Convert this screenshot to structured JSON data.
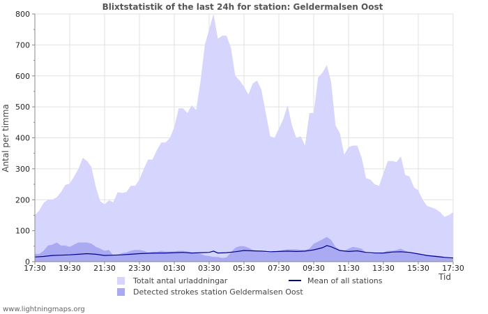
{
  "chart_data": {
    "type": "area",
    "title": "Blixtstatistik of the last 24h for station: Geldermalsen Oost",
    "ylabel": "Antal per timma",
    "xlabel": "Tid",
    "ylim": [
      0,
      800
    ],
    "yticks": [
      0,
      100,
      200,
      300,
      400,
      500,
      600,
      700,
      800
    ],
    "xlim": [
      0,
      24
    ],
    "xticks": [
      {
        "x": 0,
        "label": "17:30"
      },
      {
        "x": 2,
        "label": "19:30"
      },
      {
        "x": 4,
        "label": "21:30"
      },
      {
        "x": 6,
        "label": "23:30"
      },
      {
        "x": 8,
        "label": "01:30"
      },
      {
        "x": 10,
        "label": "03:30"
      },
      {
        "x": 12,
        "label": "05:30"
      },
      {
        "x": 14,
        "label": "07:30"
      },
      {
        "x": 16,
        "label": "09:30"
      },
      {
        "x": 18,
        "label": "11:30"
      },
      {
        "x": 20,
        "label": "13:30"
      },
      {
        "x": 22,
        "label": "15:30"
      },
      {
        "x": 24,
        "label": "17:30"
      }
    ],
    "series": [
      {
        "name": "Totalt antal urladdningar",
        "kind": "area",
        "color": "#d5d5fd",
        "points": [
          [
            0,
            150
          ],
          [
            0.25,
            165
          ],
          [
            0.5,
            190
          ],
          [
            0.75,
            200
          ],
          [
            1,
            200
          ],
          [
            1.25,
            208
          ],
          [
            1.5,
            225
          ],
          [
            1.75,
            248
          ],
          [
            2,
            252
          ],
          [
            2.25,
            275
          ],
          [
            2.5,
            300
          ],
          [
            2.75,
            335
          ],
          [
            3,
            325
          ],
          [
            3.25,
            305
          ],
          [
            3.5,
            240
          ],
          [
            3.75,
            195
          ],
          [
            4,
            185
          ],
          [
            4.25,
            198
          ],
          [
            4.5,
            192
          ],
          [
            4.75,
            225
          ],
          [
            5,
            222
          ],
          [
            5.25,
            225
          ],
          [
            5.5,
            245
          ],
          [
            5.75,
            245
          ],
          [
            6,
            265
          ],
          [
            6.25,
            300
          ],
          [
            6.5,
            330
          ],
          [
            6.75,
            330
          ],
          [
            7,
            360
          ],
          [
            7.25,
            385
          ],
          [
            7.5,
            385
          ],
          [
            7.75,
            400
          ],
          [
            8,
            435
          ],
          [
            8.25,
            495
          ],
          [
            8.5,
            495
          ],
          [
            8.75,
            480
          ],
          [
            9,
            505
          ],
          [
            9.25,
            490
          ],
          [
            9.5,
            580
          ],
          [
            9.75,
            700
          ],
          [
            10,
            750
          ],
          [
            10.25,
            800
          ],
          [
            10.5,
            720
          ],
          [
            10.75,
            730
          ],
          [
            11,
            730
          ],
          [
            11.25,
            690
          ],
          [
            11.5,
            600
          ],
          [
            11.75,
            585
          ],
          [
            12,
            565
          ],
          [
            12.25,
            540
          ],
          [
            12.5,
            575
          ],
          [
            12.75,
            585
          ],
          [
            13,
            555
          ],
          [
            13.25,
            480
          ],
          [
            13.5,
            405
          ],
          [
            13.75,
            400
          ],
          [
            14,
            430
          ],
          [
            14.25,
            460
          ],
          [
            14.5,
            505
          ],
          [
            14.75,
            440
          ],
          [
            15,
            400
          ],
          [
            15.25,
            405
          ],
          [
            15.5,
            375
          ],
          [
            15.75,
            480
          ],
          [
            16,
            480
          ],
          [
            16.25,
            595
          ],
          [
            16.5,
            610
          ],
          [
            16.75,
            635
          ],
          [
            17,
            580
          ],
          [
            17.25,
            440
          ],
          [
            17.5,
            415
          ],
          [
            17.75,
            345
          ],
          [
            18,
            370
          ],
          [
            18.25,
            375
          ],
          [
            18.5,
            375
          ],
          [
            18.75,
            335
          ],
          [
            19,
            270
          ],
          [
            19.25,
            265
          ],
          [
            19.5,
            250
          ],
          [
            19.75,
            245
          ],
          [
            20,
            285
          ],
          [
            20.25,
            325
          ],
          [
            20.5,
            325
          ],
          [
            20.75,
            322
          ],
          [
            21,
            340
          ],
          [
            21.25,
            280
          ],
          [
            21.5,
            275
          ],
          [
            21.75,
            240
          ],
          [
            22,
            230
          ],
          [
            22.25,
            200
          ],
          [
            22.5,
            180
          ],
          [
            22.75,
            175
          ],
          [
            23,
            170
          ],
          [
            23.25,
            160
          ],
          [
            23.5,
            145
          ],
          [
            23.75,
            150
          ],
          [
            24,
            160
          ]
        ]
      },
      {
        "name": "Detected strokes station Geldermalsen Oost",
        "kind": "area",
        "color": "#aaaaf3",
        "points": [
          [
            0,
            25
          ],
          [
            0.25,
            25
          ],
          [
            0.5,
            35
          ],
          [
            0.75,
            52
          ],
          [
            1,
            55
          ],
          [
            1.25,
            62
          ],
          [
            1.5,
            52
          ],
          [
            1.75,
            52
          ],
          [
            2,
            48
          ],
          [
            2.25,
            55
          ],
          [
            2.5,
            62
          ],
          [
            2.75,
            62
          ],
          [
            3,
            62
          ],
          [
            3.25,
            58
          ],
          [
            3.5,
            48
          ],
          [
            3.75,
            42
          ],
          [
            4,
            35
          ],
          [
            4.25,
            38
          ],
          [
            4.5,
            20
          ],
          [
            4.75,
            22
          ],
          [
            5,
            28
          ],
          [
            5.25,
            30
          ],
          [
            5.5,
            35
          ],
          [
            5.75,
            38
          ],
          [
            6,
            38
          ],
          [
            6.25,
            35
          ],
          [
            6.5,
            30
          ],
          [
            6.75,
            32
          ],
          [
            7,
            32
          ],
          [
            7.25,
            35
          ],
          [
            7.5,
            33
          ],
          [
            7.75,
            33
          ],
          [
            8,
            33
          ],
          [
            8.25,
            35
          ],
          [
            8.5,
            35
          ],
          [
            8.75,
            33
          ],
          [
            9,
            30
          ],
          [
            9.25,
            28
          ],
          [
            9.5,
            25
          ],
          [
            9.75,
            20
          ],
          [
            10,
            18
          ],
          [
            10.25,
            15
          ],
          [
            10.5,
            15
          ],
          [
            10.75,
            12
          ],
          [
            11,
            14
          ],
          [
            11.25,
            30
          ],
          [
            11.5,
            45
          ],
          [
            11.75,
            50
          ],
          [
            12,
            50
          ],
          [
            12.25,
            45
          ],
          [
            12.5,
            38
          ],
          [
            12.75,
            35
          ],
          [
            13,
            32
          ],
          [
            13.25,
            30
          ],
          [
            13.5,
            30
          ],
          [
            13.75,
            32
          ],
          [
            14,
            35
          ],
          [
            14.25,
            38
          ],
          [
            14.5,
            40
          ],
          [
            14.75,
            40
          ],
          [
            15,
            40
          ],
          [
            15.25,
            38
          ],
          [
            15.5,
            38
          ],
          [
            15.75,
            42
          ],
          [
            16,
            58
          ],
          [
            16.25,
            65
          ],
          [
            16.5,
            72
          ],
          [
            16.75,
            80
          ],
          [
            17,
            70
          ],
          [
            17.25,
            48
          ],
          [
            17.5,
            38
          ],
          [
            17.75,
            35
          ],
          [
            18,
            42
          ],
          [
            18.25,
            48
          ],
          [
            18.5,
            45
          ],
          [
            18.75,
            42
          ],
          [
            19,
            28
          ],
          [
            19.25,
            25
          ],
          [
            19.5,
            25
          ],
          [
            19.75,
            25
          ],
          [
            20,
            30
          ],
          [
            20.25,
            35
          ],
          [
            20.5,
            35
          ],
          [
            20.75,
            38
          ],
          [
            21,
            42
          ],
          [
            21.25,
            35
          ],
          [
            21.5,
            30
          ],
          [
            21.75,
            28
          ],
          [
            22,
            25
          ],
          [
            22.25,
            20
          ],
          [
            22.5,
            20
          ],
          [
            22.75,
            20
          ],
          [
            23,
            20
          ],
          [
            23.25,
            18
          ],
          [
            23.5,
            15
          ],
          [
            23.75,
            12
          ],
          [
            24,
            12
          ]
        ]
      },
      {
        "name": "Mean of all stations",
        "kind": "line",
        "color": "#00008b",
        "points": [
          [
            0,
            15
          ],
          [
            0.5,
            17
          ],
          [
            1,
            20
          ],
          [
            1.5,
            21
          ],
          [
            2,
            22
          ],
          [
            2.5,
            24
          ],
          [
            3,
            26
          ],
          [
            3.5,
            24
          ],
          [
            4,
            20
          ],
          [
            4.5,
            21
          ],
          [
            5,
            22
          ],
          [
            5.5,
            24
          ],
          [
            6,
            26
          ],
          [
            6.5,
            27
          ],
          [
            7,
            28
          ],
          [
            7.5,
            28
          ],
          [
            8,
            29
          ],
          [
            8.5,
            30
          ],
          [
            9,
            28
          ],
          [
            9.5,
            29
          ],
          [
            10,
            30
          ],
          [
            10.25,
            34
          ],
          [
            10.5,
            28
          ],
          [
            11,
            29
          ],
          [
            11.5,
            32
          ],
          [
            12,
            36
          ],
          [
            12.5,
            35
          ],
          [
            13,
            34
          ],
          [
            13.5,
            32
          ],
          [
            14,
            33
          ],
          [
            14.5,
            34
          ],
          [
            15,
            33
          ],
          [
            15.5,
            34
          ],
          [
            16,
            38
          ],
          [
            16.5,
            45
          ],
          [
            16.75,
            52
          ],
          [
            17,
            48
          ],
          [
            17.5,
            36
          ],
          [
            18,
            33
          ],
          [
            18.5,
            35
          ],
          [
            19,
            30
          ],
          [
            19.5,
            28
          ],
          [
            20,
            28
          ],
          [
            20.5,
            31
          ],
          [
            21,
            32
          ],
          [
            21.5,
            30
          ],
          [
            22,
            25
          ],
          [
            22.5,
            20
          ],
          [
            23,
            17
          ],
          [
            23.5,
            14
          ],
          [
            24,
            12
          ]
        ]
      }
    ],
    "legend": [
      {
        "label": "Totalt antal urladdningar",
        "color": "#d5d5fd",
        "kind": "swatch"
      },
      {
        "label": "Detected strokes station Geldermalsen Oost",
        "color": "#aaaaf3",
        "kind": "swatch"
      },
      {
        "label": "Mean of all stations",
        "color": "#00008b",
        "kind": "line"
      }
    ]
  },
  "footer": {
    "credit": "www.lightningmaps.org"
  }
}
